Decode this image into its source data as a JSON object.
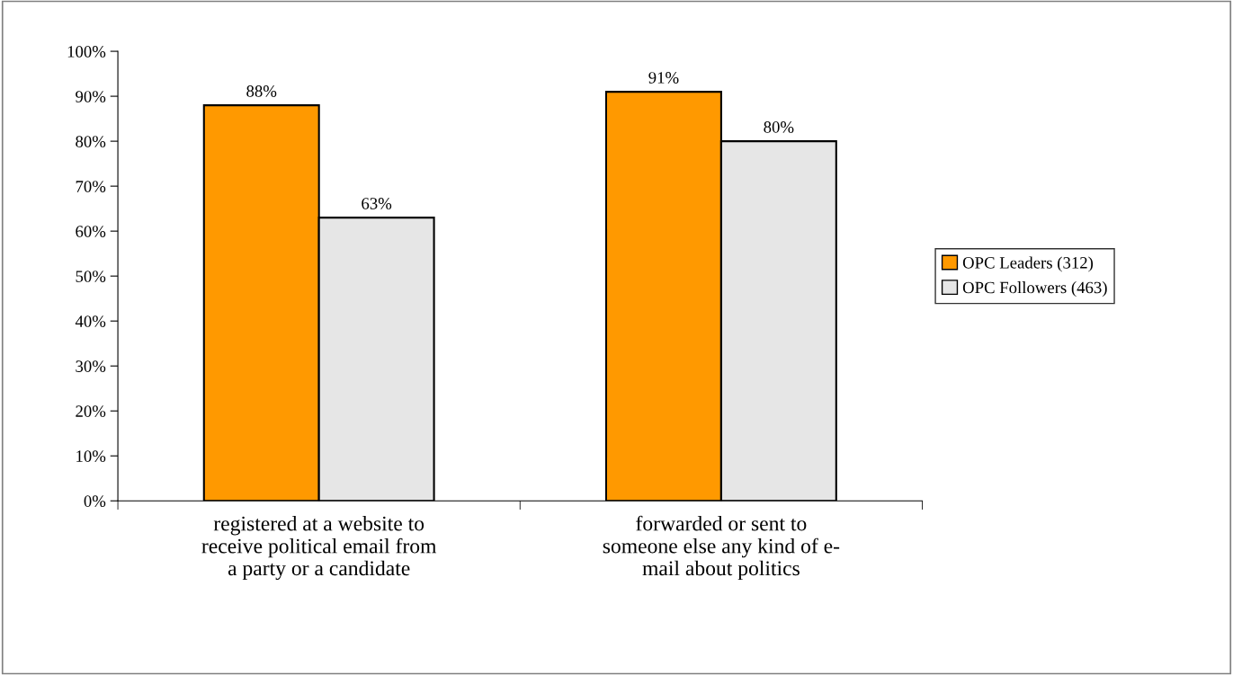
{
  "chart_data": {
    "type": "bar",
    "categories": [
      "registered at a website to\nreceive political email from\na party or a candidate",
      "forwarded or sent to\nsomeone else any kind of e-\nmail about politics"
    ],
    "series": [
      {
        "name": "OPC Leaders (312)",
        "color": "#ff9900",
        "values": [
          88,
          91
        ]
      },
      {
        "name": "OPC Followers (463)",
        "color": "#e6e6e6",
        "values": [
          63,
          80
        ]
      }
    ],
    "ylim": [
      0,
      100
    ],
    "yticks": [
      {
        "value": 0,
        "label": "0%"
      },
      {
        "value": 10,
        "label": "10%"
      },
      {
        "value": 20,
        "label": "20%"
      },
      {
        "value": 30,
        "label": "30%"
      },
      {
        "value": 40,
        "label": "40%"
      },
      {
        "value": 50,
        "label": "50%"
      },
      {
        "value": 60,
        "label": "60%"
      },
      {
        "value": 70,
        "label": "70%"
      },
      {
        "value": 80,
        "label": "80%"
      },
      {
        "value": 90,
        "label": "90%"
      },
      {
        "value": 100,
        "label": "100%"
      }
    ],
    "value_labels": [
      [
        "88%",
        "91%"
      ],
      [
        "63%",
        "80%"
      ]
    ],
    "legend": "right",
    "grid": false
  }
}
